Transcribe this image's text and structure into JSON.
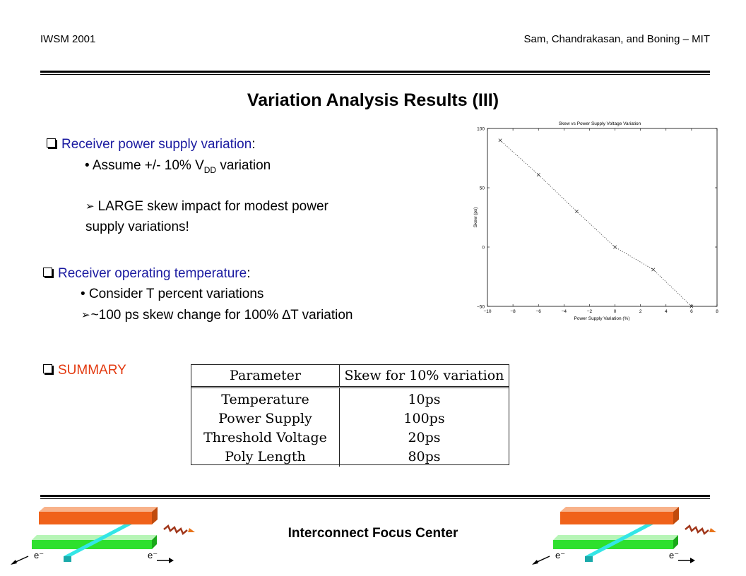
{
  "header": {
    "left": "IWSM 2001",
    "right": "Sam, Chandrakasan, and Boning – MIT"
  },
  "title": "Variation Analysis Results (III)",
  "section1": {
    "heading": "Receiver power supply variation",
    "heading_suffix": ":",
    "bullet_prefix": "• Assume +/- 10% V",
    "bullet_sub": "DD",
    "bullet_suffix": " variation",
    "conclusion_line1": "LARGE skew impact for modest power",
    "conclusion_line2": "supply variations!"
  },
  "section2": {
    "heading": "Receiver operating temperature",
    "heading_suffix": ":",
    "bullet": "• Consider T percent variations",
    "conclusion_prefix": "~100 ps skew change for 100% ",
    "conclusion_delta": "∆",
    "conclusion_suffix": "T variation"
  },
  "section3": {
    "heading": "SUMMARY"
  },
  "summary_table": {
    "headers": [
      "Parameter",
      "Skew for 10% variation"
    ],
    "rows": [
      [
        "Temperature",
        "10ps"
      ],
      [
        "Power Supply",
        "100ps"
      ],
      [
        "Threshold Voltage",
        "20ps"
      ],
      [
        "Poly Length",
        "80ps"
      ]
    ]
  },
  "chart_data": {
    "type": "line",
    "title": "Skew vs Power Supply Voltage Variation",
    "xlabel": "Power Supply Variation (%)",
    "ylabel": "Skew (ps)",
    "xlim": [
      -10,
      8
    ],
    "ylim": [
      -50,
      100
    ],
    "xticks": [
      -10,
      -8,
      -6,
      -4,
      -2,
      0,
      2,
      4,
      6,
      8
    ],
    "yticks": [
      -50,
      0,
      50,
      100
    ],
    "grid": false,
    "series": [
      {
        "x": [
          -9,
          -6,
          -3,
          0,
          3,
          6
        ],
        "y": [
          90,
          61,
          30,
          0,
          -19,
          -50
        ]
      }
    ]
  },
  "footer": {
    "center": "Interconnect Focus Center"
  },
  "logo": {
    "electron_label": "e⁻"
  },
  "colors": {
    "accent_blue": "#1a1aa0",
    "accent_red": "#e33a10",
    "wire_orange": "#f0621a",
    "wire_cyan": "#33e6e6",
    "wire_green": "#2ee02e"
  }
}
